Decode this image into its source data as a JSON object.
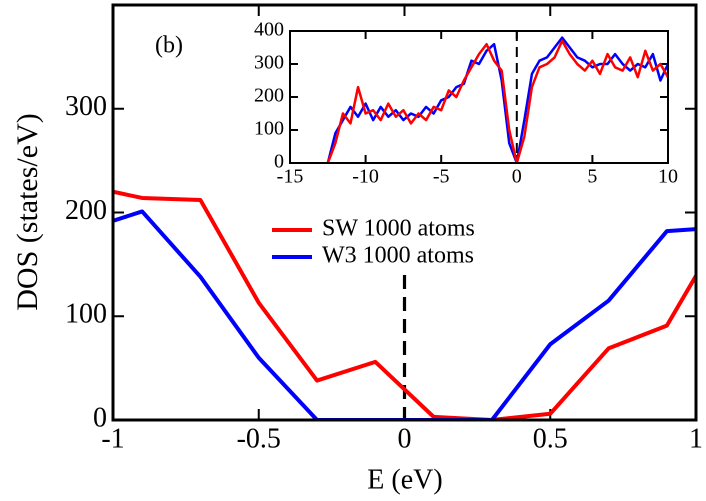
{
  "chart_data": [
    {
      "type": "line",
      "xlabel": "E (eV)",
      "ylabel": "DOS (states/eV)",
      "annotation": "(b)",
      "x": [
        -1,
        -0.9,
        -0.7,
        -0.5,
        -0.3,
        -0.1,
        0.1,
        0.3,
        0.5,
        0.7,
        0.9,
        1
      ],
      "series": [
        {
          "name": "SW 1000 atoms",
          "color": "#ff0000",
          "values": [
            220,
            214,
            212,
            113,
            38,
            56,
            3,
            0,
            6,
            69,
            91,
            139
          ]
        },
        {
          "name": "W3 1000 atoms",
          "color": "#0000ff",
          "values": [
            192,
            201,
            138,
            60,
            0,
            0,
            0,
            0,
            73,
            115,
            182,
            184
          ]
        }
      ],
      "xlim": [
        -1,
        1
      ],
      "xticks": [
        -1,
        -0.5,
        0,
        0.5,
        1
      ],
      "ylim": [
        0,
        400
      ],
      "yticks": [
        0,
        100,
        200,
        300
      ],
      "vline": 0
    },
    {
      "type": "line",
      "x": [
        -12.5,
        -12,
        -11.5,
        -11,
        -10.5,
        -10,
        -9.5,
        -9,
        -8.5,
        -8,
        -7.5,
        -7,
        -6.5,
        -6,
        -5.5,
        -5,
        -4.5,
        -4,
        -3.5,
        -3,
        -2.5,
        -2,
        -1.5,
        -1,
        -0.5,
        0,
        0.5,
        1,
        1.5,
        2,
        2.5,
        3,
        3.5,
        4,
        4.5,
        5,
        5.5,
        6,
        6.5,
        7,
        7.5,
        8,
        8.5,
        9,
        9.5,
        10
      ],
      "series": [
        {
          "color": "#0000ff",
          "values": [
            0,
            90,
            130,
            170,
            140,
            180,
            130,
            170,
            140,
            160,
            130,
            150,
            140,
            170,
            150,
            190,
            200,
            230,
            240,
            310,
            300,
            340,
            360,
            250,
            60,
            0,
            130,
            270,
            310,
            320,
            350,
            380,
            350,
            320,
            310,
            290,
            300,
            300,
            330,
            300,
            280,
            300,
            290,
            330,
            250,
            300
          ]
        },
        {
          "color": "#ff0000",
          "values": [
            0,
            60,
            150,
            120,
            230,
            150,
            160,
            130,
            180,
            140,
            160,
            120,
            150,
            130,
            170,
            160,
            220,
            200,
            250,
            290,
            330,
            360,
            310,
            280,
            100,
            0,
            80,
            230,
            290,
            300,
            320,
            370,
            330,
            300,
            280,
            310,
            270,
            330,
            290,
            280,
            320,
            260,
            340,
            280,
            300,
            260
          ]
        }
      ],
      "xlim": [
        -15,
        10
      ],
      "xticks": [
        -15,
        -10,
        -5,
        0,
        5,
        10
      ],
      "ylim": [
        0,
        400
      ],
      "yticks": [
        0,
        100,
        200,
        300,
        400
      ],
      "vline": 0
    }
  ]
}
